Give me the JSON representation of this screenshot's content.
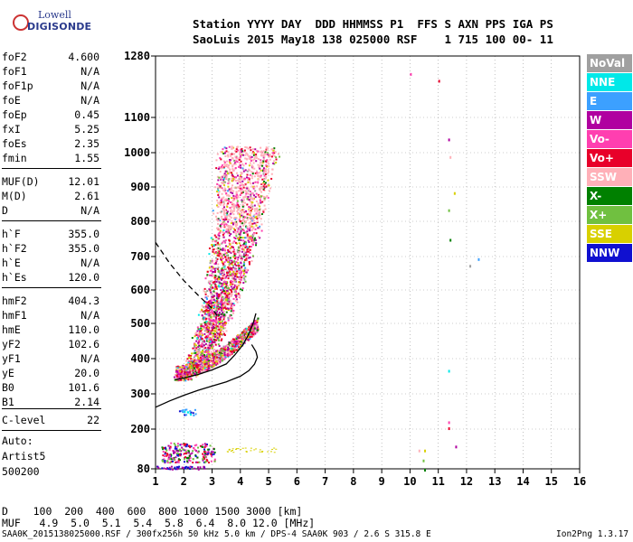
{
  "logo": {
    "line1": "Lowell",
    "line2": "DIGISONDE"
  },
  "header": {
    "row1": "Station YYYY DAY  DDD HHMMSS P1  FFS S AXN PPS IGA PS",
    "row2": "SaoLuis 2015 May18 138 025000 RSF    1 715 100 00- 11"
  },
  "params": [
    {
      "label": "foF2",
      "value": "4.600"
    },
    {
      "label": "foF1",
      "value": "N/A"
    },
    {
      "label": "foF1p",
      "value": "N/A"
    },
    {
      "label": "foE",
      "value": "N/A"
    },
    {
      "label": "foEp",
      "value": "0.45"
    },
    {
      "label": "fxI",
      "value": "5.25"
    },
    {
      "label": "foEs",
      "value": "2.35"
    },
    {
      "label": "fmin",
      "value": "1.55"
    },
    {
      "label": "MUF(D)",
      "value": "12.01"
    },
    {
      "label": "M(D)",
      "value": "2.61"
    },
    {
      "label": "D",
      "value": "N/A"
    },
    {
      "label": "h`F",
      "value": "355.0"
    },
    {
      "label": "h`F2",
      "value": "355.0"
    },
    {
      "label": "h`E",
      "value": "N/A"
    },
    {
      "label": "h`Es",
      "value": "120.0"
    },
    {
      "label": "hmF2",
      "value": "404.3"
    },
    {
      "label": "hmF1",
      "value": "N/A"
    },
    {
      "label": "hmE",
      "value": "110.0"
    },
    {
      "label": "yF2",
      "value": "102.6"
    },
    {
      "label": "yF1",
      "value": "N/A"
    },
    {
      "label": "yE",
      "value": "20.0"
    },
    {
      "label": "B0",
      "value": "101.6"
    },
    {
      "label": "B1",
      "value": "2.14"
    },
    {
      "label": "C-level",
      "value": "22"
    }
  ],
  "notes": {
    "auto": "Auto:",
    "artist": "Artist5",
    "code": "500200"
  },
  "legend": [
    {
      "label": "NoVal",
      "color": "#a0a0a0"
    },
    {
      "label": "NNE",
      "color": "#00e8e8"
    },
    {
      "label": "E",
      "color": "#3ca0ff"
    },
    {
      "label": "W",
      "color": "#b000a0"
    },
    {
      "label": "Vo-",
      "color": "#ff3fb0"
    },
    {
      "label": "Vo+",
      "color": "#e8002a"
    },
    {
      "label": "SSW",
      "color": "#ffb0b8"
    },
    {
      "label": "X-",
      "color": "#008000"
    },
    {
      "label": "X+",
      "color": "#70c040"
    },
    {
      "label": "SSE",
      "color": "#d8d000"
    },
    {
      "label": "NNW",
      "color": "#1010d0"
    }
  ],
  "bottom": {
    "d_row": "D    100  200  400  600  800 1000 1500 3000 [km]",
    "muf_row": "MUF   4.9  5.0  5.1  5.4  5.8  6.4  8.0 12.0 [MHz]",
    "footer_left": "SAA0K_2015138025000.RSF / 300fx256h 50 kHz 5.0 km / DPS-4 SAA0K 903 / 2.6 S 315.8 E",
    "footer_right": "Ion2Png 1.3.17"
  },
  "chart_data": {
    "type": "scatter",
    "x_ticks": [
      "1",
      "2",
      "3",
      "4",
      "5",
      "6",
      "7",
      "8",
      "9",
      "10",
      "11",
      "12",
      "13",
      "14",
      "15",
      "16"
    ],
    "y_ticks": [
      "80",
      "200",
      "300",
      "400",
      "500",
      "600",
      "700",
      "800",
      "900",
      "1000",
      "1100",
      "1280"
    ],
    "xlim": [
      1,
      16
    ],
    "y_scale": "nonlinear-ionogram",
    "grid": true,
    "profile_curve": [
      [
        1.0,
        262
      ],
      [
        1.5,
        280
      ],
      [
        2.0,
        296
      ],
      [
        2.5,
        310
      ],
      [
        3.0,
        322
      ],
      [
        3.5,
        334
      ],
      [
        4.0,
        350
      ],
      [
        4.3,
        366
      ],
      [
        4.5,
        384
      ],
      [
        4.6,
        404
      ],
      [
        4.55,
        420
      ],
      [
        4.4,
        440
      ]
    ],
    "ordinary_trace": [
      [
        1.7,
        340
      ],
      [
        2.0,
        345
      ],
      [
        2.5,
        355
      ],
      [
        3.0,
        368
      ],
      [
        3.5,
        385
      ],
      [
        3.8,
        410
      ],
      [
        4.1,
        440
      ],
      [
        4.3,
        470
      ],
      [
        4.45,
        500
      ],
      [
        4.55,
        530
      ]
    ],
    "extraordinary_trace_dashed": [
      [
        1.0,
        740
      ],
      [
        1.5,
        680
      ],
      [
        2.0,
        628
      ],
      [
        2.5,
        585
      ],
      [
        3.0,
        545
      ],
      [
        3.2,
        520
      ]
    ],
    "scatter_points": [
      [
        10.0,
        1230
      ],
      [
        11.0,
        1210
      ],
      [
        11.35,
        1040
      ],
      [
        11.4,
        990
      ],
      [
        11.55,
        885
      ],
      [
        11.35,
        835
      ],
      [
        11.4,
        750
      ],
      [
        12.1,
        675
      ],
      [
        12.4,
        695
      ],
      [
        11.35,
        368
      ],
      [
        11.35,
        222
      ],
      [
        11.35,
        205
      ],
      [
        11.6,
        150
      ],
      [
        10.3,
        138
      ],
      [
        10.5,
        138
      ],
      [
        10.45,
        108
      ],
      [
        10.5,
        80
      ]
    ]
  }
}
